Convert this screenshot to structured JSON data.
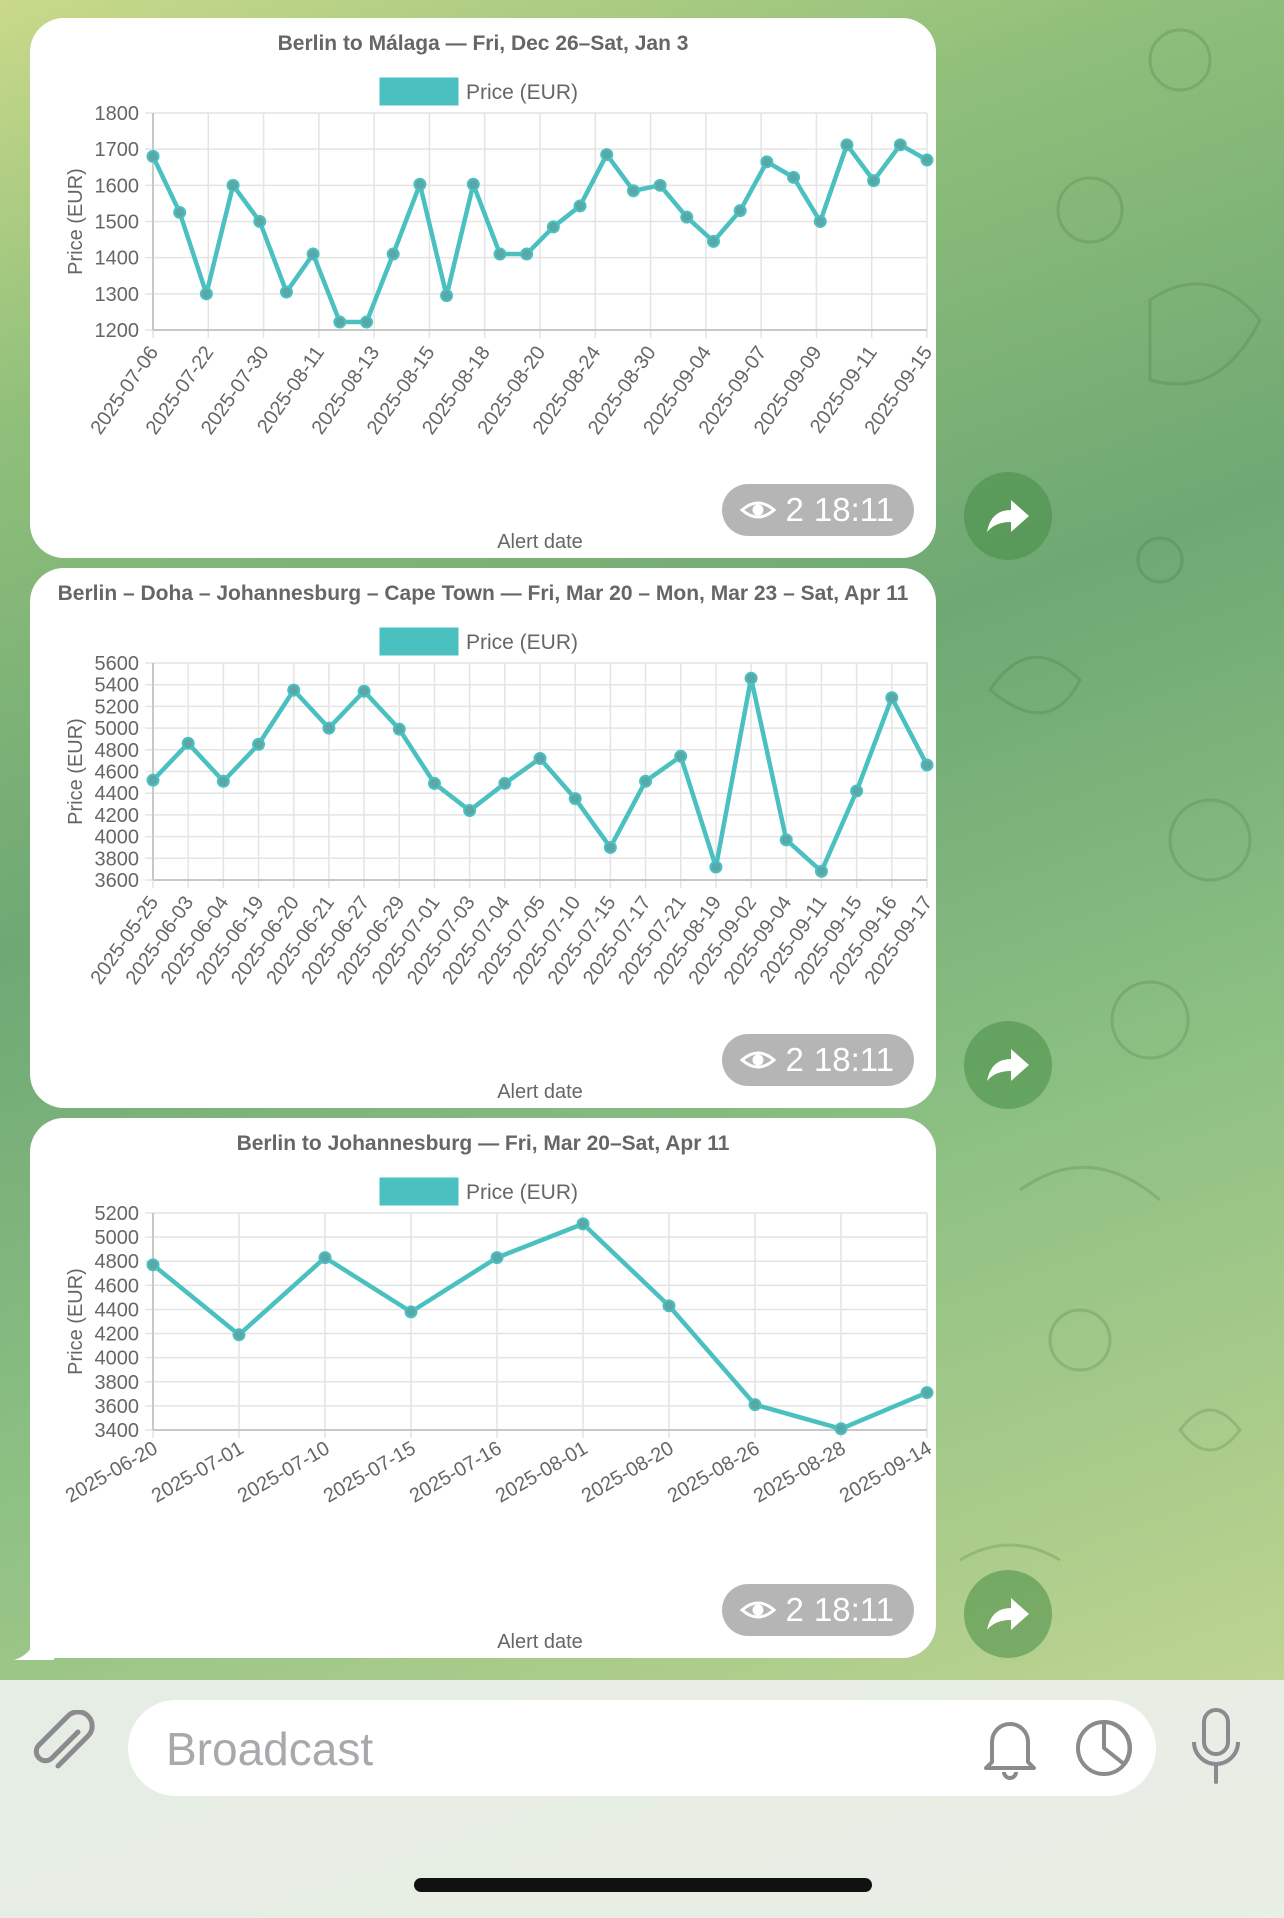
{
  "theme": {
    "accent": "#4bc0c0",
    "pill_bg": "#7b7b7b",
    "bubble_bg": "#ffffff"
  },
  "messages": [
    {
      "views": "2",
      "time": "18:11",
      "chart_data": {
        "type": "line",
        "title": "Berlin to Málaga — Fri, Dec 26–Sat, Jan 3",
        "legend": "Price (EUR)",
        "xlabel": "Alert date",
        "ylabel": "Price (EUR)",
        "ylim": [
          1200,
          1800
        ],
        "yticks": [
          1200,
          1300,
          1400,
          1500,
          1600,
          1700,
          1800
        ],
        "x_ticks": [
          "2025-07-06",
          "2025-07-22",
          "2025-07-30",
          "2025-08-11",
          "2025-08-13",
          "2025-08-15",
          "2025-08-18",
          "2025-08-20",
          "2025-08-24",
          "2025-08-30",
          "2025-09-04",
          "2025-09-07",
          "2025-09-09",
          "2025-09-11",
          "2025-09-15"
        ],
        "series": [
          {
            "name": "Price (EUR)",
            "values": [
              1680,
              1525,
              1300,
              1600,
              1500,
              1305,
              1410,
              1222,
              1222,
              1410,
              1603,
              1295,
              1603,
              1410,
              1410,
              1485,
              1543,
              1685,
              1585,
              1600,
              1512,
              1445,
              1530,
              1665,
              1622,
              1500,
              1712,
              1613,
              1712,
              1670
            ]
          }
        ]
      }
    },
    {
      "views": "2",
      "time": "18:11",
      "chart_data": {
        "type": "line",
        "title": "Berlin – Doha – Johannesburg – Cape Town — Fri, Mar 20 – Mon, Mar 23 – Sat, Apr 11",
        "legend": "Price (EUR)",
        "xlabel": "Alert date",
        "ylabel": "Price (EUR)",
        "ylim": [
          3600,
          5600
        ],
        "yticks": [
          3600,
          3800,
          4000,
          4200,
          4400,
          4600,
          4800,
          5000,
          5200,
          5400,
          5600
        ],
        "x_ticks": [
          "2025-05-25",
          "2025-06-03",
          "2025-06-04",
          "2025-06-19",
          "2025-06-20",
          "2025-06-21",
          "2025-06-27",
          "2025-06-29",
          "2025-07-01",
          "2025-07-03",
          "2025-07-04",
          "2025-07-05",
          "2025-07-10",
          "2025-07-15",
          "2025-07-17",
          "2025-07-21",
          "2025-08-19",
          "2025-09-02",
          "2025-09-04",
          "2025-09-11",
          "2025-09-15",
          "2025-09-16",
          "2025-09-17"
        ],
        "series": [
          {
            "name": "Price (EUR)",
            "values": [
              4520,
              4860,
              4510,
              4850,
              5350,
              5000,
              5340,
              4990,
              4490,
              4240,
              4490,
              4720,
              4350,
              3900,
              4510,
              4740,
              3720,
              5460,
              3970,
              3680,
              4420,
              5280,
              4660
            ]
          }
        ]
      }
    },
    {
      "views": "2",
      "time": "18:11",
      "chart_data": {
        "type": "line",
        "title": "Berlin to Johannesburg — Fri, Mar 20–Sat, Apr 11",
        "legend": "Price (EUR)",
        "xlabel": "Alert date",
        "ylabel": "Price (EUR)",
        "ylim": [
          3400,
          5200
        ],
        "yticks": [
          3400,
          3600,
          3800,
          4000,
          4200,
          4400,
          4600,
          4800,
          5000,
          5200
        ],
        "x_ticks": [
          "2025-06-20",
          "2025-07-01",
          "2025-07-10",
          "2025-07-15",
          "2025-07-16",
          "2025-08-01",
          "2025-08-20",
          "2025-08-26",
          "2025-08-28",
          "2025-09-14"
        ],
        "series": [
          {
            "name": "Price (EUR)",
            "values": [
              4770,
              4190,
              4830,
              4380,
              4830,
              5110,
              4430,
              3610,
              3410,
              3710
            ]
          }
        ]
      }
    }
  ],
  "composer": {
    "placeholder": "Broadcast"
  },
  "icons": {
    "attach": "paperclip-icon",
    "bell": "bell-icon",
    "timer": "timer-icon",
    "mic": "microphone-icon",
    "share": "share-arrow-icon",
    "views": "eye-icon"
  }
}
